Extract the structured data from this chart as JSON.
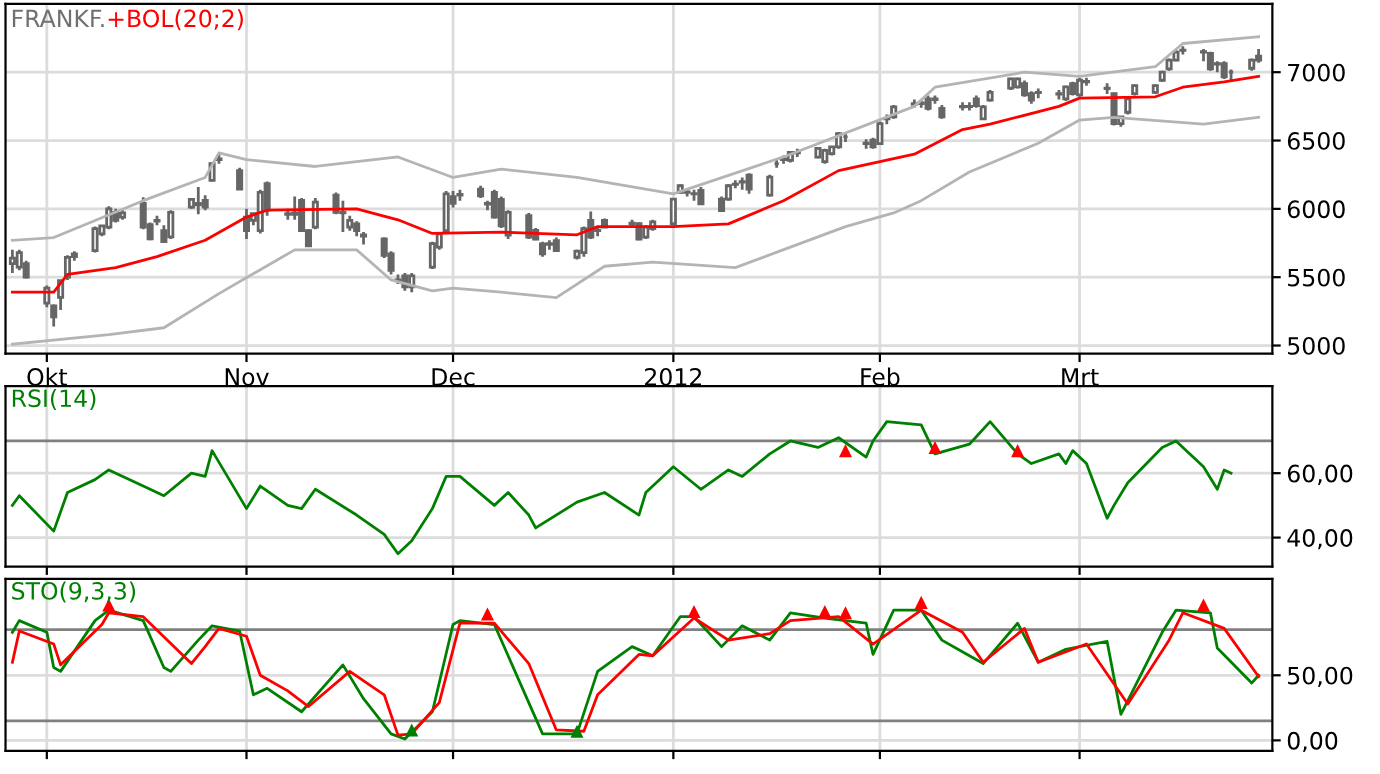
{
  "chart_data": [
    {
      "type": "candlestick",
      "title": "FRANKF.",
      "color": "#666666",
      "x": [
        "2011-09-28",
        "2011-09-29",
        "2011-09-30",
        "2011-10-03",
        "2011-10-04",
        "2011-10-05",
        "2011-10-06",
        "2011-10-07",
        "2011-10-10",
        "2011-10-11",
        "2011-10-12",
        "2011-10-13",
        "2011-10-14",
        "2011-10-17",
        "2011-10-18",
        "2011-10-19",
        "2011-10-20",
        "2011-10-21",
        "2011-10-24",
        "2011-10-25",
        "2011-10-26",
        "2011-10-27",
        "2011-10-28",
        "2011-10-31",
        "2011-11-01",
        "2011-11-02",
        "2011-11-03",
        "2011-11-04",
        "2011-11-07",
        "2011-11-08",
        "2011-11-09",
        "2011-11-10",
        "2011-11-11",
        "2011-11-14",
        "2011-11-15",
        "2011-11-16",
        "2011-11-17",
        "2011-11-18",
        "2011-11-21",
        "2011-11-22",
        "2011-11-23",
        "2011-11-24",
        "2011-11-25",
        "2011-11-28",
        "2011-11-29",
        "2011-11-30",
        "2011-12-01",
        "2011-12-02",
        "2011-12-05",
        "2011-12-06",
        "2011-12-07",
        "2011-12-08",
        "2011-12-09",
        "2011-12-12",
        "2011-12-13",
        "2011-12-14",
        "2011-12-15",
        "2011-12-16",
        "2011-12-19",
        "2011-12-20",
        "2011-12-21",
        "2011-12-22",
        "2011-12-23",
        "2011-12-27",
        "2011-12-28",
        "2011-12-29",
        "2011-12-30",
        "2012-01-02",
        "2012-01-03",
        "2012-01-04",
        "2012-01-05",
        "2012-01-06",
        "2012-01-09",
        "2012-01-10",
        "2012-01-11",
        "2012-01-12",
        "2012-01-13",
        "2012-01-16",
        "2012-01-17",
        "2012-01-18",
        "2012-01-19",
        "2012-01-20",
        "2012-01-23",
        "2012-01-24",
        "2012-01-25",
        "2012-01-26",
        "2012-01-27",
        "2012-01-30",
        "2012-01-31",
        "2012-02-01",
        "2012-02-02",
        "2012-02-03",
        "2012-02-06",
        "2012-02-07",
        "2012-02-08",
        "2012-02-09",
        "2012-02-10",
        "2012-02-13",
        "2012-02-14",
        "2012-02-15",
        "2012-02-16",
        "2012-02-17",
        "2012-02-20",
        "2012-02-21",
        "2012-02-22",
        "2012-02-23",
        "2012-02-24",
        "2012-02-27",
        "2012-02-28",
        "2012-02-29",
        "2012-03-01",
        "2012-03-02",
        "2012-03-05",
        "2012-03-06",
        "2012-03-07",
        "2012-03-08",
        "2012-03-09",
        "2012-03-12",
        "2012-03-13",
        "2012-03-14",
        "2012-03-15",
        "2012-03-16",
        "2012-03-19",
        "2012-03-20",
        "2012-03-21",
        "2012-03-22",
        "2012-03-23",
        "2012-03-26",
        "2012-03-27"
      ],
      "ohlc": [
        [
          5600,
          5700,
          5530,
          5640
        ],
        [
          5573,
          5700,
          5550,
          5680
        ],
        [
          5600,
          5620,
          5490,
          5500
        ],
        [
          5310,
          5440,
          5280,
          5420
        ],
        [
          5290,
          5300,
          5140,
          5210
        ],
        [
          5353,
          5480,
          5260,
          5475
        ],
        [
          5500,
          5660,
          5480,
          5645
        ],
        [
          5650,
          5690,
          5620,
          5670
        ],
        [
          5695,
          5870,
          5680,
          5855
        ],
        [
          5817,
          5880,
          5800,
          5875
        ],
        [
          5866,
          6020,
          5850,
          6000
        ],
        [
          5975,
          6000,
          5900,
          5915
        ],
        [
          5940,
          5990,
          5920,
          5970
        ],
        [
          6040,
          6085,
          5850,
          5866
        ],
        [
          5885,
          5900,
          5770,
          5780
        ],
        [
          5910,
          5950,
          5880,
          5915
        ],
        [
          5840,
          5880,
          5750,
          5760
        ],
        [
          5795,
          5990,
          5780,
          5975
        ],
        [
          6013,
          6080,
          6000,
          6070
        ],
        [
          6040,
          6160,
          5960,
          6030
        ],
        [
          6062,
          6100,
          5990,
          6013
        ],
        [
          6208,
          6340,
          6200,
          6330
        ],
        [
          6360,
          6400,
          6330,
          6365
        ],
        [
          6280,
          6300,
          6140,
          6145
        ],
        [
          5940,
          6000,
          5780,
          5840
        ],
        [
          5915,
          5970,
          5880,
          5965
        ],
        [
          5840,
          6140,
          5820,
          6120
        ],
        [
          6185,
          6200,
          5950,
          5990
        ],
        [
          5965,
          6000,
          5920,
          5960
        ],
        [
          5960,
          6090,
          5920,
          5970
        ],
        [
          6062,
          6080,
          5830,
          5840
        ],
        [
          5840,
          5850,
          5720,
          5730
        ],
        [
          5866,
          6080,
          5850,
          6050
        ],
        [
          6100,
          6120,
          5960,
          5975
        ],
        [
          5975,
          6060,
          5830,
          5970
        ],
        [
          5866,
          5950,
          5840,
          5915
        ],
        [
          5890,
          5910,
          5800,
          5840
        ],
        [
          5810,
          5830,
          5740,
          5800
        ],
        [
          5780,
          5790,
          5640,
          5660
        ],
        [
          5670,
          5690,
          5520,
          5550
        ],
        [
          5480,
          5520,
          5450,
          5475
        ],
        [
          5510,
          5530,
          5400,
          5430
        ],
        [
          5430,
          5530,
          5390,
          5510
        ],
        [
          5573,
          5760,
          5560,
          5745
        ],
        [
          5720,
          5830,
          5700,
          5817
        ],
        [
          5840,
          6130,
          5820,
          6110
        ],
        [
          6090,
          6130,
          6010,
          6040
        ],
        [
          6100,
          6140,
          6060,
          6105
        ],
        [
          6145,
          6170,
          6080,
          6096
        ],
        [
          6040,
          6060,
          5990,
          6035
        ],
        [
          6120,
          6140,
          5930,
          5940
        ],
        [
          6070,
          6090,
          5860,
          5876
        ],
        [
          5808,
          5990,
          5780,
          5974
        ],
        [
          5950,
          5970,
          5780,
          5793
        ],
        [
          5842,
          5860,
          5770,
          5778
        ],
        [
          5744,
          5760,
          5650,
          5671
        ],
        [
          5740,
          5770,
          5700,
          5745
        ],
        [
          5768,
          5790,
          5690,
          5695
        ],
        [
          5646,
          5700,
          5630,
          5690
        ],
        [
          5680,
          5870,
          5650,
          5856
        ],
        [
          5915,
          5980,
          5780,
          5793
        ],
        [
          5840,
          5870,
          5800,
          5845
        ],
        [
          5915,
          5930,
          5860,
          5866
        ],
        [
          5890,
          5920,
          5860,
          5895
        ],
        [
          5891,
          5900,
          5770,
          5778
        ],
        [
          5793,
          5880,
          5780,
          5866
        ],
        [
          5856,
          5920,
          5840,
          5905
        ],
        [
          5891,
          6080,
          5880,
          6071
        ],
        [
          6120,
          6180,
          6110,
          6169
        ],
        [
          6120,
          6150,
          6090,
          6125
        ],
        [
          6110,
          6140,
          6060,
          6111
        ],
        [
          6135,
          6160,
          6030,
          6037
        ],
        [
          6071,
          6090,
          5980,
          5988
        ],
        [
          6071,
          6180,
          6060,
          6169
        ],
        [
          6180,
          6210,
          6150,
          6179
        ],
        [
          6195,
          6230,
          6140,
          6199
        ],
        [
          6247,
          6260,
          6110,
          6145
        ],
        [
          6101,
          6250,
          6090,
          6233
        ],
        [
          6330,
          6360,
          6300,
          6330
        ],
        [
          6360,
          6390,
          6330,
          6365
        ],
        [
          6355,
          6420,
          6340,
          6414
        ],
        [
          6410,
          6440,
          6380,
          6414
        ],
        [
          6379,
          6450,
          6370,
          6443
        ],
        [
          6345,
          6440,
          6330,
          6428
        ],
        [
          6404,
          6460,
          6390,
          6453
        ],
        [
          6453,
          6560,
          6440,
          6550
        ],
        [
          6526,
          6560,
          6490,
          6526
        ],
        [
          6480,
          6510,
          6440,
          6477
        ],
        [
          6502,
          6520,
          6440,
          6453
        ],
        [
          6477,
          6640,
          6470,
          6624
        ],
        [
          6660,
          6690,
          6620,
          6658
        ],
        [
          6673,
          6760,
          6660,
          6746
        ],
        [
          6765,
          6800,
          6740,
          6770
        ],
        [
          6770,
          6800,
          6740,
          6775
        ],
        [
          6805,
          6830,
          6720,
          6736
        ],
        [
          6800,
          6830,
          6770,
          6805
        ],
        [
          6736,
          6760,
          6660,
          6673
        ],
        [
          6746,
          6780,
          6720,
          6750
        ],
        [
          6750,
          6780,
          6720,
          6748
        ],
        [
          6805,
          6830,
          6740,
          6756
        ],
        [
          6658,
          6760,
          6650,
          6746
        ],
        [
          6795,
          6870,
          6785,
          6853
        ],
        [
          6883,
          6960,
          6870,
          6951
        ],
        [
          6892,
          6960,
          6880,
          6951
        ],
        [
          6917,
          6940,
          6820,
          6834
        ],
        [
          6844,
          6860,
          6770,
          6795
        ],
        [
          6850,
          6880,
          6810,
          6853
        ],
        [
          6840,
          6870,
          6800,
          6844
        ],
        [
          6805,
          6900,
          6790,
          6892
        ],
        [
          6917,
          6930,
          6830,
          6844
        ],
        [
          6834,
          6960,
          6820,
          6941
        ],
        [
          6930,
          6960,
          6900,
          6932
        ],
        [
          6880,
          6920,
          6840,
          6883
        ],
        [
          6844,
          6850,
          6610,
          6624
        ],
        [
          6624,
          6680,
          6600,
          6673
        ],
        [
          6707,
          6820,
          6690,
          6805
        ],
        [
          6844,
          6910,
          6830,
          6902
        ],
        [
          6853,
          6910,
          6840,
          6902
        ],
        [
          6941,
          7010,
          6930,
          7000
        ],
        [
          7024,
          7100,
          7010,
          7088
        ],
        [
          7088,
          7160,
          7080,
          7147
        ],
        [
          7160,
          7190,
          7130,
          7161
        ],
        [
          7150,
          7170,
          7080,
          7147
        ],
        [
          7137,
          7150,
          7010,
          7024
        ],
        [
          7060,
          7080,
          7000,
          7063
        ],
        [
          7063,
          7080,
          6950,
          6966
        ],
        [
          7000,
          7020,
          6940,
          7000
        ],
        [
          7029,
          7100,
          7010,
          7088
        ],
        [
          7117,
          7170,
          7070,
          7088
        ]
      ],
      "series": [
        {
          "type": "line",
          "color": "#b4b4b4",
          "x": [
            "2011-09-28",
            "2011-10-04",
            "2011-10-17",
            "2011-10-26",
            "2011-10-28",
            "2011-11-01",
            "2011-11-11",
            "2011-11-23",
            "2011-12-01",
            "2011-12-08",
            "2011-12-19",
            "2012-01-02",
            "2012-01-18",
            "2012-02-06",
            "2012-02-09",
            "2012-02-22",
            "2012-03-01",
            "2012-03-12",
            "2012-03-16",
            "2012-03-27"
          ],
          "values": [
            5770,
            5790,
            6060,
            6230,
            6410,
            6360,
            6310,
            6380,
            6230,
            6290,
            6230,
            6110,
            6380,
            6750,
            6890,
            7000,
            6970,
            7040,
            7210,
            7260
          ]
        },
        {
          "type": "line",
          "name": "+BOL(20;2)",
          "color": "#ff0000",
          "x": [
            "2011-09-28",
            "2011-10-04",
            "2011-10-06",
            "2011-10-13",
            "2011-10-19",
            "2011-10-26",
            "2011-11-01",
            "2011-11-04",
            "2011-11-17",
            "2011-11-23",
            "2011-11-28",
            "2011-12-08",
            "2011-12-19",
            "2011-12-22",
            "2012-01-02",
            "2012-01-10",
            "2012-01-18",
            "2012-01-26",
            "2012-02-06",
            "2012-02-13",
            "2012-02-17",
            "2012-02-27",
            "2012-03-01",
            "2012-03-12",
            "2012-03-16",
            "2012-03-22",
            "2012-03-27"
          ],
          "values": [
            5390,
            5390,
            5520,
            5570,
            5650,
            5770,
            5940,
            5990,
            6000,
            5920,
            5820,
            5830,
            5810,
            5870,
            5870,
            5890,
            6060,
            6280,
            6400,
            6580,
            6620,
            6750,
            6810,
            6820,
            6890,
            6930,
            6970
          ]
        },
        {
          "type": "line",
          "color": "#b4b4b4",
          "x": [
            "2011-09-28",
            "2011-10-12",
            "2011-10-20",
            "2011-10-28",
            "2011-11-08",
            "2011-11-17",
            "2011-11-22",
            "2011-11-28",
            "2011-12-01",
            "2011-12-08",
            "2011-12-16",
            "2011-12-23",
            "2011-12-30",
            "2012-01-11",
            "2012-01-19",
            "2012-01-27",
            "2012-02-03",
            "2012-02-07",
            "2012-02-14",
            "2012-02-24",
            "2012-03-01",
            "2012-03-06",
            "2012-03-19",
            "2012-03-27"
          ],
          "values": [
            5010,
            5080,
            5130,
            5380,
            5700,
            5700,
            5480,
            5400,
            5420,
            5390,
            5350,
            5580,
            5610,
            5570,
            5720,
            5870,
            5970,
            6060,
            6270,
            6480,
            6650,
            6670,
            6620,
            6670
          ]
        }
      ],
      "xlim": [
        "2011-09-27",
        "2012-03-29"
      ],
      "xticks": [
        {
          "value": "2011-10-03",
          "label": "Okt"
        },
        {
          "value": "2011-11-01",
          "label": "Nov"
        },
        {
          "value": "2011-12-01",
          "label": "Dec"
        },
        {
          "value": "2012-01-02",
          "label": "2012"
        },
        {
          "value": "2012-02-01",
          "label": "Feb"
        },
        {
          "value": "2012-03-01",
          "label": "Mrt"
        }
      ],
      "ylim": [
        4940,
        7500
      ],
      "yticks": [
        5000,
        5500,
        6000,
        6500,
        7000
      ],
      "grid": true
    },
    {
      "type": "line",
      "title": "RSI(14)",
      "series": [
        {
          "color": "#008000",
          "x": [
            "2011-09-28",
            "2011-09-29",
            "2011-10-04",
            "2011-10-06",
            "2011-10-10",
            "2011-10-12",
            "2011-10-17",
            "2011-10-20",
            "2011-10-24",
            "2011-10-26",
            "2011-10-27",
            "2011-11-01",
            "2011-11-03",
            "2011-11-07",
            "2011-11-09",
            "2011-11-11",
            "2011-11-17",
            "2011-11-21",
            "2011-11-23",
            "2011-11-25",
            "2011-11-28",
            "2011-11-30",
            "2011-12-02",
            "2011-12-07",
            "2011-12-09",
            "2011-12-12",
            "2011-12-13",
            "2011-12-19",
            "2011-12-23",
            "2011-12-28",
            "2011-12-29",
            "2012-01-02",
            "2012-01-06",
            "2012-01-10",
            "2012-01-12",
            "2012-01-16",
            "2012-01-19",
            "2012-01-23",
            "2012-01-26",
            "2012-01-30",
            "2012-01-31",
            "2012-02-02",
            "2012-02-07",
            "2012-02-09",
            "2012-02-14",
            "2012-02-17",
            "2012-02-21",
            "2012-02-23",
            "2012-02-27",
            "2012-02-28",
            "2012-02-29",
            "2012-03-02",
            "2012-03-05",
            "2012-03-06",
            "2012-03-08",
            "2012-03-13",
            "2012-03-15",
            "2012-03-19",
            "2012-03-21",
            "2012-03-22",
            "2012-03-23"
          ],
          "values": [
            50,
            53,
            42,
            54,
            58,
            61,
            56,
            53,
            60,
            59,
            67,
            49,
            56,
            50,
            49,
            55,
            47,
            41,
            35,
            39,
            49,
            59,
            59,
            50,
            54,
            47,
            43,
            51,
            54,
            47,
            54,
            62,
            55,
            61,
            59,
            66,
            70,
            68,
            71,
            65,
            70,
            76,
            75,
            66,
            69,
            76,
            66,
            63,
            66,
            63,
            67,
            63,
            46,
            50,
            57,
            68,
            70,
            62,
            55,
            61,
            60
          ]
        },
        {
          "type": "scatter",
          "marker": "triangle",
          "color": "#ff0000",
          "x": [
            "2012-01-27",
            "2012-02-09",
            "2012-02-21"
          ],
          "values": [
            67,
            68,
            67
          ]
        }
      ],
      "ref_lines": [
        {
          "axis": "y",
          "value": 70,
          "color": "#808080"
        }
      ],
      "xlim": [
        "2011-09-27",
        "2012-03-29"
      ],
      "xticks": [
        {
          "value": "2011-10-03",
          "label": null
        },
        {
          "value": "2011-11-01",
          "label": null
        },
        {
          "value": "2011-12-01",
          "label": null
        },
        {
          "value": "2012-01-02",
          "label": null
        },
        {
          "value": "2012-02-01",
          "label": null
        },
        {
          "value": "2012-03-01",
          "label": null
        }
      ],
      "ylim": [
        31,
        87
      ],
      "yticks": [
        {
          "value": 40,
          "label": "40,00"
        },
        {
          "value": 60,
          "label": "60,00"
        }
      ],
      "grid": true,
      "tick_labels": "y"
    },
    {
      "type": "line",
      "title": "STO(9,3,3)",
      "series": [
        {
          "color": "#008000",
          "x": [
            "2011-09-28",
            "2011-09-29",
            "2011-10-03",
            "2011-10-04",
            "2011-10-05",
            "2011-10-10",
            "2011-10-12",
            "2011-10-17",
            "2011-10-20",
            "2011-10-21",
            "2011-10-25",
            "2011-10-27",
            "2011-10-31",
            "2011-11-02",
            "2011-11-04",
            "2011-11-09",
            "2011-11-15",
            "2011-11-18",
            "2011-11-22",
            "2011-11-24",
            "2011-11-28",
            "2011-12-01",
            "2011-12-02",
            "2011-12-07",
            "2011-12-09",
            "2011-12-14",
            "2011-12-19",
            "2011-12-22",
            "2011-12-27",
            "2011-12-30",
            "2012-01-03",
            "2012-01-05",
            "2012-01-09",
            "2012-01-12",
            "2012-01-16",
            "2012-01-19",
            "2012-01-24",
            "2012-01-30",
            "2012-01-31",
            "2012-02-03",
            "2012-02-07",
            "2012-02-10",
            "2012-02-14",
            "2012-02-16",
            "2012-02-21",
            "2012-02-24",
            "2012-02-28",
            "2012-03-05",
            "2012-03-07",
            "2012-03-13",
            "2012-03-15",
            "2012-03-20",
            "2012-03-21",
            "2012-03-26",
            "2012-03-27"
          ],
          "values": [
            83,
            92,
            83,
            56,
            53,
            92,
            100,
            92,
            56,
            53,
            77,
            88,
            84,
            35,
            40,
            22,
            58,
            32,
            5,
            1,
            22,
            89,
            92,
            89,
            65,
            5,
            5,
            53,
            72,
            65,
            95,
            95,
            72,
            88,
            77,
            98,
            94,
            90,
            66,
            100,
            100,
            77,
            65,
            59,
            90,
            60,
            70,
            76,
            20,
            83,
            100,
            98,
            71,
            44,
            50
          ]
        },
        {
          "color": "#ff0000",
          "x": [
            "2011-09-28",
            "2011-09-29",
            "2011-10-04",
            "2011-10-05",
            "2011-10-11",
            "2011-10-12",
            "2011-10-17",
            "2011-10-24",
            "2011-10-26",
            "2011-10-28",
            "2011-11-01",
            "2011-11-03",
            "2011-11-07",
            "2011-11-10",
            "2011-11-16",
            "2011-11-21",
            "2011-11-23",
            "2011-11-25",
            "2011-11-29",
            "2011-12-02",
            "2011-12-07",
            "2011-12-12",
            "2011-12-16",
            "2011-12-20",
            "2011-12-22",
            "2011-12-28",
            "2011-12-30",
            "2012-01-05",
            "2012-01-10",
            "2012-01-16",
            "2012-01-19",
            "2012-01-26",
            "2012-01-31",
            "2012-02-07",
            "2012-02-13",
            "2012-02-16",
            "2012-02-22",
            "2012-02-24",
            "2012-03-02",
            "2012-03-08",
            "2012-03-14",
            "2012-03-16",
            "2012-03-22",
            "2012-03-27"
          ],
          "values": [
            60,
            84,
            74,
            58,
            89,
            98,
            95,
            59,
            72,
            86,
            80,
            50,
            38,
            26,
            53,
            35,
            4,
            5,
            29,
            90,
            90,
            59,
            8,
            7,
            35,
            66,
            65,
            94,
            77,
            82,
            92,
            95,
            74,
            100,
            83,
            60,
            86,
            60,
            74,
            28,
            77,
            98,
            86,
            49
          ]
        },
        {
          "type": "scatter",
          "marker": "triangle",
          "color": "#ff0000",
          "x": [
            "2011-10-12",
            "2011-12-06",
            "2012-01-05",
            "2012-01-24",
            "2012-01-27",
            "2012-02-07",
            "2012-03-19"
          ],
          "values": [
            104,
            97,
            99,
            99,
            98,
            106,
            104
          ]
        },
        {
          "type": "scatter",
          "marker": "triangle",
          "color": "#008000",
          "x": [
            "2011-11-25",
            "2011-12-19"
          ],
          "values": [
            8,
            7
          ]
        }
      ],
      "ref_lines": [
        {
          "axis": "y",
          "value": 85,
          "color": "#808080"
        },
        {
          "axis": "y",
          "value": 15,
          "color": "#808080"
        }
      ],
      "xlim": [
        "2011-09-27",
        "2012-03-29"
      ],
      "xticks": [
        {
          "value": "2011-10-03",
          "label": null
        },
        {
          "value": "2011-11-01",
          "label": null
        },
        {
          "value": "2011-12-01",
          "label": null
        },
        {
          "value": "2012-01-02",
          "label": null
        },
        {
          "value": "2012-02-01",
          "label": null
        },
        {
          "value": "2012-03-01",
          "label": null
        }
      ],
      "ylim": [
        -8,
        124
      ],
      "yticks": [
        {
          "value": 0,
          "label": "0,00"
        },
        {
          "value": 50,
          "label": "50,00"
        }
      ],
      "grid": true,
      "tick_labels": "y"
    }
  ]
}
